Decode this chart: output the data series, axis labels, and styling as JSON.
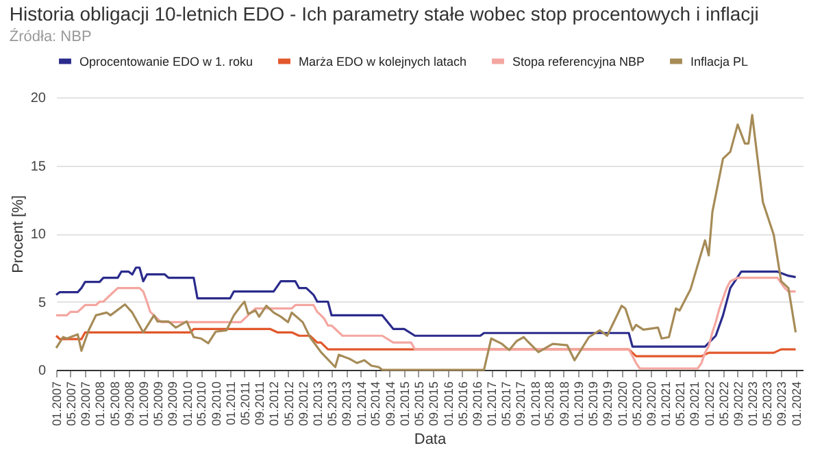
{
  "chart_data": {
    "type": "line",
    "title": "Historia obligacji 10-letnich EDO - Ich parametry stałe wobec stop procentowych i inflacji",
    "subtitle": "Źródła: NBP",
    "xlabel": "Data",
    "ylabel": "Procent [%]",
    "legend": "top",
    "grid": "y",
    "ylim": [
      0,
      20
    ],
    "yticks": [
      0,
      5,
      10,
      15,
      20
    ],
    "xlim": [
      "2007-01",
      "2024-03"
    ],
    "xticks": [
      {
        "value": "2007-01",
        "label": "01.2007"
      },
      {
        "value": "2007-05",
        "label": "05.2007"
      },
      {
        "value": "2007-09",
        "label": "09.2007"
      },
      {
        "value": "2008-01",
        "label": "01.2008"
      },
      {
        "value": "2008-05",
        "label": "05.2008"
      },
      {
        "value": "2008-09",
        "label": "09.2008"
      },
      {
        "value": "2009-01",
        "label": "01.2009"
      },
      {
        "value": "2009-05",
        "label": "05.2009"
      },
      {
        "value": "2009-09",
        "label": "09.2009"
      },
      {
        "value": "2010-01",
        "label": "01.2010"
      },
      {
        "value": "2010-05",
        "label": "05.2010"
      },
      {
        "value": "2010-09",
        "label": "09.2010"
      },
      {
        "value": "2011-01",
        "label": "01.2011"
      },
      {
        "value": "2011-05",
        "label": "05.2011"
      },
      {
        "value": "2011-09",
        "label": "09.2011"
      },
      {
        "value": "2012-01",
        "label": "01.2012"
      },
      {
        "value": "2012-05",
        "label": "05.2012"
      },
      {
        "value": "2012-09",
        "label": "09.2012"
      },
      {
        "value": "2013-01",
        "label": "01.2013"
      },
      {
        "value": "2013-05",
        "label": "05.2013"
      },
      {
        "value": "2013-09",
        "label": "09.2013"
      },
      {
        "value": "2014-01",
        "label": "01.2014"
      },
      {
        "value": "2014-05",
        "label": "05.2014"
      },
      {
        "value": "2014-09",
        "label": "09.2014"
      },
      {
        "value": "2015-01",
        "label": "01.2015"
      },
      {
        "value": "2015-05",
        "label": "05.2015"
      },
      {
        "value": "2015-09",
        "label": "09.2015"
      },
      {
        "value": "2016-01",
        "label": "01.2016"
      },
      {
        "value": "2016-05",
        "label": "05.2016"
      },
      {
        "value": "2016-09",
        "label": "09.2016"
      },
      {
        "value": "2017-01",
        "label": "01.2017"
      },
      {
        "value": "2017-05",
        "label": "05.2017"
      },
      {
        "value": "2017-09",
        "label": "09.2017"
      },
      {
        "value": "2018-01",
        "label": "01.2018"
      },
      {
        "value": "2018-05",
        "label": "05.2018"
      },
      {
        "value": "2018-09",
        "label": "09.2018"
      },
      {
        "value": "2019-01",
        "label": "01.2019"
      },
      {
        "value": "2019-05",
        "label": "05.2019"
      },
      {
        "value": "2019-09",
        "label": "09.2019"
      },
      {
        "value": "2020-01",
        "label": "01.2020"
      },
      {
        "value": "2020-05",
        "label": "05.2020"
      },
      {
        "value": "2020-09",
        "label": "09.2020"
      },
      {
        "value": "2021-01",
        "label": "01.2021"
      },
      {
        "value": "2021-05",
        "label": "05.2021"
      },
      {
        "value": "2021-09",
        "label": "09.2021"
      },
      {
        "value": "2022-01",
        "label": "01.2022"
      },
      {
        "value": "2022-05",
        "label": "05.2022"
      },
      {
        "value": "2022-09",
        "label": "09.2022"
      },
      {
        "value": "2023-01",
        "label": "01.2023"
      },
      {
        "value": "2023-05",
        "label": "05.2023"
      },
      {
        "value": "2023-09",
        "label": "09.2023"
      },
      {
        "value": "2024-01",
        "label": "01.2024"
      }
    ],
    "series": [
      {
        "name": "Oprocentowanie EDO w 1. roku",
        "color": "#2b2b8c",
        "x": [
          "2007-01",
          "2007-02",
          "2007-07",
          "2007-08",
          "2007-09",
          "2008-01",
          "2008-02",
          "2008-06",
          "2008-07",
          "2008-09",
          "2008-10",
          "2008-11",
          "2008-12",
          "2009-01",
          "2009-02",
          "2009-07",
          "2009-08",
          "2010-03",
          "2010-04",
          "2011-01",
          "2011-02",
          "2012-01",
          "2012-03",
          "2012-07",
          "2012-08",
          "2012-10",
          "2012-11",
          "2012-12",
          "2013-01",
          "2013-04",
          "2013-05",
          "2014-07",
          "2014-10",
          "2015-01",
          "2015-04",
          "2016-10",
          "2016-11",
          "2020-03",
          "2020-04",
          "2021-12",
          "2022-03",
          "2022-05",
          "2022-07",
          "2022-10",
          "2023-08",
          "2023-11",
          "2024-01"
        ],
        "values": [
          5.5,
          5.7,
          5.7,
          6.0,
          6.45,
          6.45,
          6.75,
          6.75,
          7.2,
          7.2,
          7.0,
          7.5,
          7.5,
          6.5,
          7.0,
          7.0,
          6.75,
          6.75,
          5.25,
          5.25,
          5.75,
          5.75,
          6.5,
          6.5,
          6.0,
          6.0,
          5.75,
          5.5,
          5.0,
          5.0,
          4.0,
          4.0,
          3.0,
          3.0,
          2.5,
          2.5,
          2.7,
          2.7,
          1.7,
          1.7,
          2.5,
          4.0,
          6.0,
          7.2,
          7.2,
          6.9,
          6.8
        ]
      },
      {
        "name": "Marża EDO w kolejnych latach",
        "color": "#e2572b",
        "x": [
          "2007-01",
          "2007-02",
          "2007-08",
          "2007-09",
          "2010-02",
          "2010-03",
          "2011-12",
          "2012-02",
          "2012-06",
          "2012-08",
          "2012-11",
          "2013-01",
          "2013-02",
          "2013-04",
          "2020-03",
          "2020-05",
          "2021-11",
          "2022-01",
          "2023-07",
          "2023-09",
          "2024-01"
        ],
        "values": [
          2.5,
          2.25,
          2.25,
          2.75,
          2.75,
          3.0,
          3.0,
          2.75,
          2.75,
          2.5,
          2.5,
          2.0,
          2.0,
          1.5,
          1.5,
          1.0,
          1.0,
          1.25,
          1.25,
          1.5,
          1.5
        ]
      },
      {
        "name": "Stopa referencyjna NBP",
        "color": "#f4a6a0",
        "x": [
          "2007-01",
          "2007-04",
          "2007-05",
          "2007-07",
          "2007-08",
          "2007-09",
          "2007-12",
          "2008-01",
          "2008-02",
          "2008-03",
          "2008-04",
          "2008-06",
          "2008-12",
          "2009-01",
          "2009-02",
          "2009-03",
          "2009-04",
          "2009-05",
          "2009-06",
          "2011-04",
          "2011-05",
          "2011-06",
          "2011-07",
          "2011-08",
          "2012-06",
          "2012-07",
          "2012-12",
          "2013-01",
          "2013-02",
          "2013-03",
          "2013-04",
          "2013-05",
          "2013-06",
          "2013-07",
          "2013-08",
          "2014-07",
          "2014-10",
          "2015-03",
          "2015-04",
          "2020-03",
          "2020-04",
          "2020-05",
          "2020-06",
          "2021-10",
          "2021-11",
          "2021-12",
          "2022-01",
          "2022-02",
          "2022-03",
          "2022-04",
          "2022-05",
          "2022-06",
          "2022-07",
          "2022-09",
          "2023-08",
          "2023-10",
          "2023-11",
          "2024-01"
        ],
        "values": [
          4.0,
          4.0,
          4.25,
          4.25,
          4.5,
          4.75,
          4.75,
          5.0,
          5.0,
          5.25,
          5.5,
          6.0,
          6.0,
          5.75,
          5.0,
          4.25,
          4.0,
          3.75,
          3.5,
          3.5,
          3.75,
          4.0,
          4.25,
          4.5,
          4.5,
          4.75,
          4.75,
          4.25,
          4.0,
          3.75,
          3.25,
          3.25,
          3.0,
          2.75,
          2.5,
          2.5,
          2.0,
          2.0,
          1.5,
          1.5,
          1.0,
          0.5,
          0.1,
          0.1,
          0.5,
          1.25,
          1.75,
          2.75,
          3.5,
          4.5,
          5.25,
          6.0,
          6.5,
          6.75,
          6.75,
          6.0,
          5.75,
          5.75
        ]
      },
      {
        "name": "Inflacja PL",
        "color": "#a68b57",
        "x": [
          "2007-01",
          "2007-03",
          "2007-04",
          "2007-07",
          "2007-08",
          "2007-10",
          "2007-12",
          "2008-03",
          "2008-04",
          "2008-08",
          "2008-10",
          "2009-01",
          "2009-04",
          "2009-05",
          "2009-08",
          "2009-10",
          "2010-01",
          "2010-03",
          "2010-05",
          "2010-07",
          "2010-09",
          "2010-12",
          "2011-02",
          "2011-04",
          "2011-05",
          "2011-06",
          "2011-08",
          "2011-09",
          "2011-11",
          "2012-01",
          "2012-03",
          "2012-05",
          "2012-06",
          "2012-09",
          "2012-11",
          "2013-02",
          "2013-06",
          "2013-07",
          "2013-10",
          "2013-12",
          "2014-02",
          "2014-04",
          "2014-06",
          "2014-07",
          "2016-11",
          "2017-01",
          "2017-04",
          "2017-06",
          "2017-08",
          "2017-10",
          "2017-11",
          "2018-02",
          "2018-06",
          "2018-10",
          "2018-12",
          "2019-04",
          "2019-07",
          "2019-09",
          "2020-01",
          "2020-02",
          "2020-04",
          "2020-05",
          "2020-07",
          "2020-11",
          "2020-12",
          "2021-02",
          "2021-04",
          "2021-05",
          "2021-08",
          "2021-12",
          "2022-01",
          "2022-02",
          "2022-05",
          "2022-07",
          "2022-09",
          "2022-11",
          "2022-12",
          "2023-01",
          "2023-04",
          "2023-07",
          "2023-09",
          "2023-11",
          "2024-01"
        ],
        "values": [
          1.6,
          2.4,
          2.3,
          2.6,
          1.4,
          2.9,
          4.0,
          4.2,
          4.0,
          4.8,
          4.2,
          2.75,
          4.0,
          3.55,
          3.55,
          3.1,
          3.55,
          2.4,
          2.3,
          1.95,
          2.8,
          2.9,
          4.0,
          4.7,
          5.0,
          4.1,
          4.35,
          3.9,
          4.7,
          4.2,
          3.9,
          3.5,
          4.2,
          3.5,
          2.4,
          1.3,
          0.2,
          1.1,
          0.8,
          0.5,
          0.7,
          0.3,
          0.2,
          0,
          0,
          2.3,
          1.9,
          1.45,
          2.1,
          2.4,
          2.1,
          1.3,
          1.9,
          1.8,
          0.7,
          2.4,
          2.9,
          2.5,
          4.7,
          4.5,
          2.9,
          3.3,
          2.95,
          3.1,
          2.3,
          2.4,
          4.5,
          4.35,
          5.9,
          9.5,
          8.4,
          11.6,
          15.5,
          16.0,
          18.0,
          16.6,
          16.6,
          18.7,
          12.3,
          9.9,
          6.5,
          6.0,
          2.75
        ]
      }
    ]
  }
}
